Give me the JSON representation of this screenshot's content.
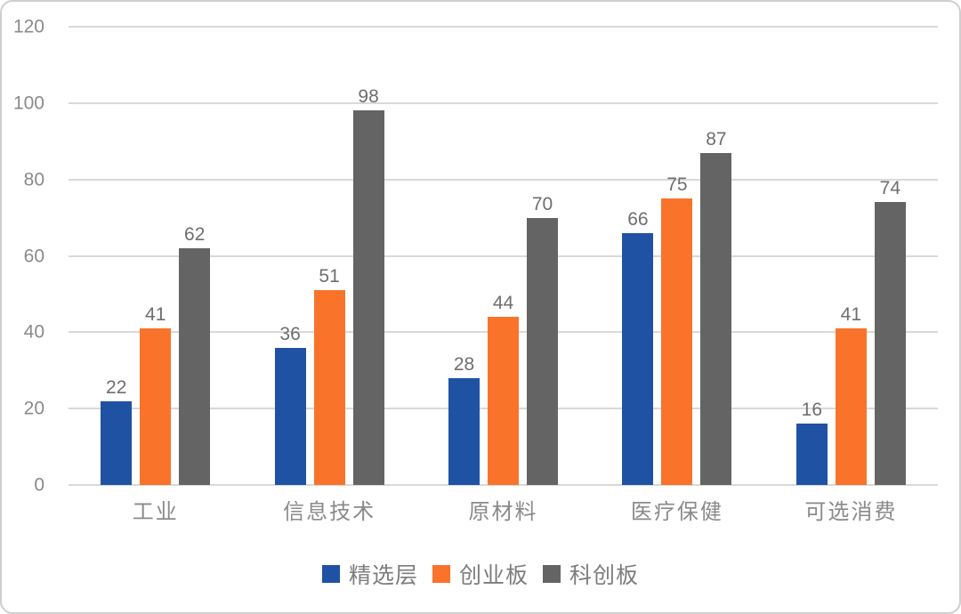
{
  "chart_data": {
    "type": "bar",
    "title": "",
    "xlabel": "",
    "ylabel": "",
    "categories": [
      "工业",
      "信息技术",
      "原材料",
      "医疗保健",
      "可选消费"
    ],
    "series": [
      {
        "name": "精选层",
        "color": "#1f52a3",
        "values": [
          22,
          36,
          28,
          66,
          16
        ]
      },
      {
        "name": "创业板",
        "color": "#f9732b",
        "values": [
          41,
          51,
          44,
          75,
          41
        ]
      },
      {
        "name": "科创板",
        "color": "#646464",
        "values": [
          62,
          98,
          70,
          87,
          74
        ]
      }
    ],
    "ylim": [
      0,
      120
    ],
    "yticks": [
      0,
      20,
      40,
      60,
      80,
      100,
      120
    ],
    "grid": true,
    "legend_position": "bottom",
    "data_labels": true
  },
  "style_colors": {
    "background": "#ffffff",
    "card_border": "#cfcfcf",
    "gridline": "#d9d9d9",
    "axis_tick_label": "#8a8a8a",
    "value_label": "#6e6e6e",
    "category_label": "#8a8a8a",
    "legend_label": "#7d7d7d"
  }
}
